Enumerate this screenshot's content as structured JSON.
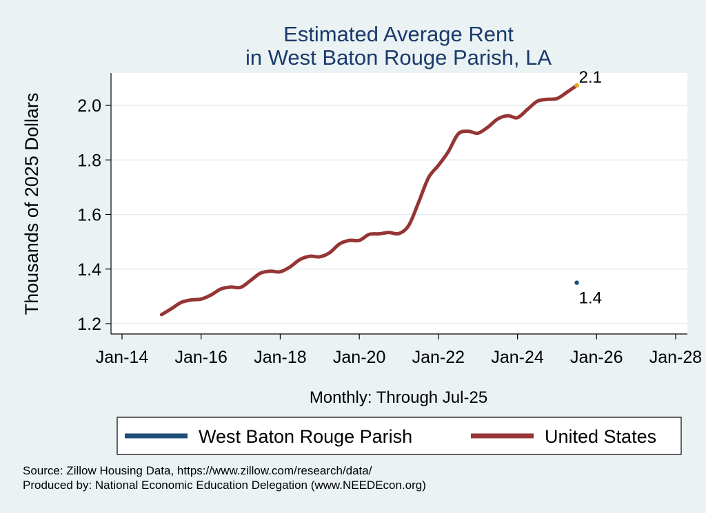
{
  "chart_data": {
    "type": "line",
    "title": "Estimated Average Rent",
    "subtitle": "in West Baton Rouge Parish, LA",
    "xlabel": "Monthly: Through Jul-25",
    "ylabel": "Thousands of 2025 Dollars",
    "xlim": [
      "2014-01",
      "2028-01"
    ],
    "ylim": [
      1.2,
      2.1
    ],
    "x_ticks": [
      "Jan-14",
      "Jan-16",
      "Jan-18",
      "Jan-20",
      "Jan-22",
      "Jan-24",
      "Jan-26",
      "Jan-28"
    ],
    "y_ticks": [
      "1.2",
      "1.4",
      "1.6",
      "1.8",
      "2.0"
    ],
    "grid": "horizontal",
    "legend_position": "bottom",
    "series": [
      {
        "name": "West Baton Rouge Parish",
        "color": "#1f4e79",
        "points": [
          [
            "2025-07",
            1.35
          ]
        ],
        "end_label": "1.4"
      },
      {
        "name": "United States",
        "color": "#953535",
        "points": [
          [
            "2015-01",
            1.233
          ],
          [
            "2015-04",
            1.255
          ],
          [
            "2015-07",
            1.278
          ],
          [
            "2015-10",
            1.287
          ],
          [
            "2016-01",
            1.29
          ],
          [
            "2016-04",
            1.305
          ],
          [
            "2016-07",
            1.327
          ],
          [
            "2016-10",
            1.334
          ],
          [
            "2017-01",
            1.333
          ],
          [
            "2017-04",
            1.358
          ],
          [
            "2017-07",
            1.385
          ],
          [
            "2017-10",
            1.392
          ],
          [
            "2018-01",
            1.39
          ],
          [
            "2018-04",
            1.408
          ],
          [
            "2018-07",
            1.435
          ],
          [
            "2018-10",
            1.447
          ],
          [
            "2019-01",
            1.445
          ],
          [
            "2019-04",
            1.46
          ],
          [
            "2019-07",
            1.492
          ],
          [
            "2019-10",
            1.505
          ],
          [
            "2020-01",
            1.505
          ],
          [
            "2020-04",
            1.527
          ],
          [
            "2020-07",
            1.529
          ],
          [
            "2020-10",
            1.534
          ],
          [
            "2021-01",
            1.53
          ],
          [
            "2021-04",
            1.56
          ],
          [
            "2021-07",
            1.645
          ],
          [
            "2021-10",
            1.735
          ],
          [
            "2022-01",
            1.78
          ],
          [
            "2022-04",
            1.83
          ],
          [
            "2022-07",
            1.895
          ],
          [
            "2022-10",
            1.905
          ],
          [
            "2023-01",
            1.898
          ],
          [
            "2023-04",
            1.92
          ],
          [
            "2023-07",
            1.95
          ],
          [
            "2023-10",
            1.962
          ],
          [
            "2024-01",
            1.955
          ],
          [
            "2024-04",
            1.985
          ],
          [
            "2024-07",
            2.015
          ],
          [
            "2024-10",
            2.022
          ],
          [
            "2025-01",
            2.025
          ],
          [
            "2025-04",
            2.048
          ],
          [
            "2025-07",
            2.073
          ]
        ],
        "end_label": "2.1",
        "end_marker_color": "#e8a317"
      }
    ]
  },
  "source_line": "Source: Zillow Housing Data, https://www.zillow.com/research/data/",
  "produced_line": "Produced by: National Economic Education Delegation (www.NEEDEcon.org)"
}
